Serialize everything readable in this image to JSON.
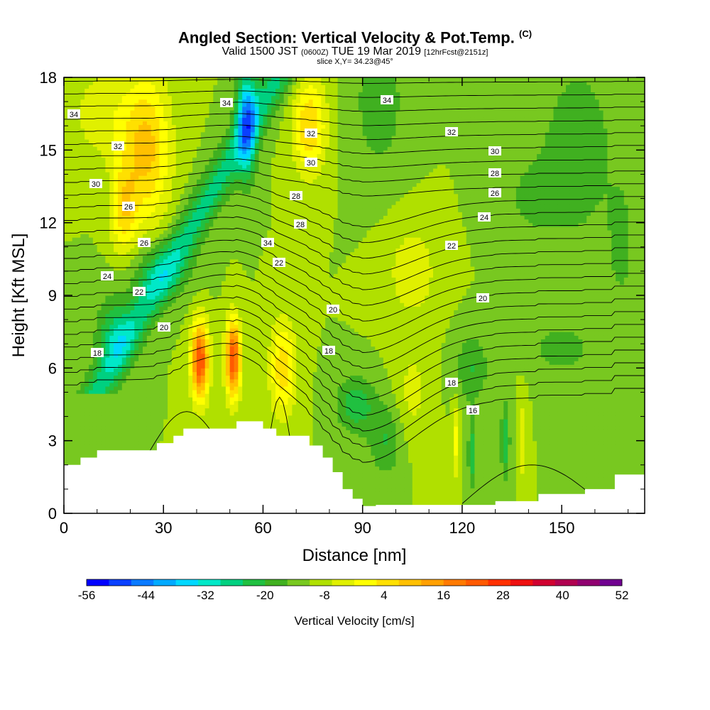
{
  "header": {
    "title": "Angled Section: Vertical Velocity & Pot.Temp.",
    "copyright": "(C)",
    "valid_prefix": "Valid 1500 JST",
    "valid_utc": "(0600Z)",
    "valid_date": "TUE 19 Mar 2019",
    "forecast": "[12hrFcst@2151z]",
    "slice": "slice X,Y= 34.23@45°"
  },
  "chart_data": {
    "type": "heatmap",
    "xlabel": "Distance [nm]",
    "ylabel": "Height [Kft MSL]",
    "xlim": [
      0,
      175
    ],
    "ylim": [
      0,
      18
    ],
    "x_ticks": [
      "0",
      "30",
      "60",
      "90",
      "120",
      "150"
    ],
    "y_ticks": [
      "0",
      "3",
      "6",
      "9",
      "12",
      "15",
      "18"
    ],
    "colorbar": {
      "title": "Vertical Velocity [cm/s]",
      "range": [
        -56,
        52
      ],
      "step": 6,
      "tick_labels": [
        "-56",
        "-44",
        "-32",
        "-20",
        "-8",
        "4",
        "16",
        "28",
        "40",
        "52"
      ],
      "colors": [
        "#0000ff",
        "#0a40ff",
        "#0a7aff",
        "#00aaff",
        "#00d8ff",
        "#00e8c8",
        "#00d080",
        "#20c040",
        "#40b020",
        "#78c820",
        "#b0e000",
        "#e0f000",
        "#ffff00",
        "#ffe000",
        "#ffc000",
        "#ffa000",
        "#ff7a00",
        "#ff5a00",
        "#ff3000",
        "#ee1010",
        "#d00030",
        "#b00050",
        "#900070",
        "#700090"
      ]
    },
    "isentrope_labels": [
      "16",
      "18",
      "20",
      "22",
      "24",
      "26",
      "28",
      "30",
      "32",
      "34"
    ],
    "terrain_nm_kft": [
      [
        0,
        2.0
      ],
      [
        5,
        2.3
      ],
      [
        10,
        2.6
      ],
      [
        20,
        2.6
      ],
      [
        28,
        2.9
      ],
      [
        33,
        3.2
      ],
      [
        36,
        3.5
      ],
      [
        50,
        3.5
      ],
      [
        52,
        3.8
      ],
      [
        58,
        3.8
      ],
      [
        60,
        3.5
      ],
      [
        64,
        3.2
      ],
      [
        70,
        3.2
      ],
      [
        74,
        2.8
      ],
      [
        78,
        2.3
      ],
      [
        81,
        1.7
      ],
      [
        84,
        1.0
      ],
      [
        87,
        0.6
      ],
      [
        90,
        0.3
      ],
      [
        94,
        0.35
      ],
      [
        100,
        0.35
      ],
      [
        110,
        0.35
      ],
      [
        121,
        0.35
      ],
      [
        128,
        0.35
      ],
      [
        130,
        0.5
      ],
      [
        140,
        0.5
      ],
      [
        143,
        0.8
      ],
      [
        152,
        0.8
      ],
      [
        157,
        1.0
      ],
      [
        160,
        1.0
      ],
      [
        166,
        1.6
      ],
      [
        175,
        1.6
      ]
    ]
  }
}
